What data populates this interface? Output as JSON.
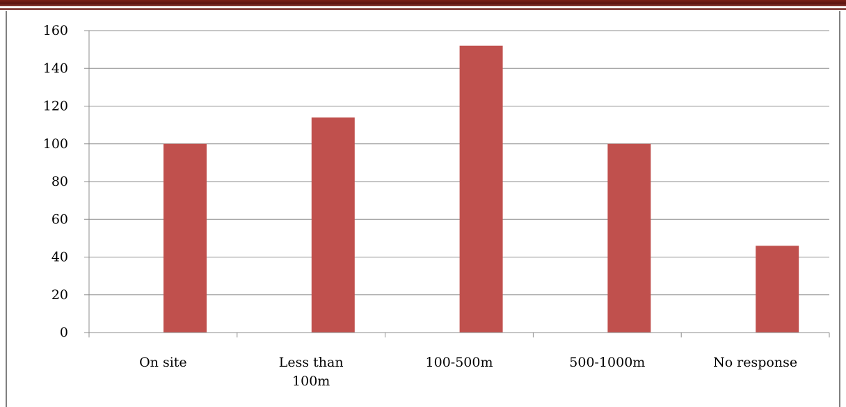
{
  "chart_data": {
    "type": "bar",
    "categories": [
      "On site",
      "Less than 100m",
      "100-500m",
      "500-1000m",
      "No response"
    ],
    "category_lines": [
      [
        "On site"
      ],
      [
        "Less than",
        "100m"
      ],
      [
        "100-500m"
      ],
      [
        "500-1000m"
      ],
      [
        "No response"
      ]
    ],
    "values": [
      100,
      114,
      152,
      100,
      46
    ],
    "ylim": [
      0,
      160
    ],
    "yticks": [
      0,
      20,
      40,
      60,
      80,
      100,
      120,
      140,
      160
    ],
    "grid": true,
    "legend": "none",
    "bar_color": "#c0504d",
    "title": "",
    "xlabel": "",
    "ylabel": ""
  }
}
